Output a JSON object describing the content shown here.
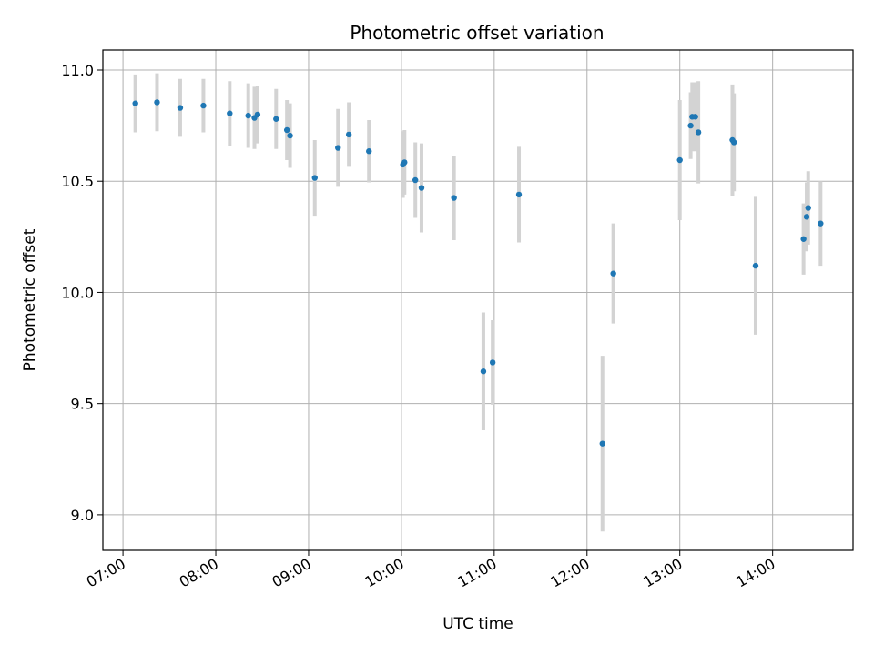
{
  "chart_data": {
    "type": "scatter",
    "title": "Photometric offset variation",
    "xlabel": "UTC time",
    "ylabel": "Photometric offset",
    "x_ticks": [
      "07:00",
      "08:00",
      "09:00",
      "10:00",
      "11:00",
      "12:00",
      "13:00",
      "14:00"
    ],
    "y_ticks": [
      "9.0",
      "9.5",
      "10.0",
      "10.5",
      "11.0"
    ],
    "ylim": [
      8.84,
      11.09
    ],
    "xlim": [
      "06:47",
      "14:52"
    ],
    "grid": true,
    "marker_color": "#1f77b4",
    "errorbar_color": "#d3d3d3",
    "points": [
      {
        "t": "07:08",
        "y": 10.85,
        "err": 0.13
      },
      {
        "t": "07:22",
        "y": 10.855,
        "err": 0.13
      },
      {
        "t": "07:37",
        "y": 10.83,
        "err": 0.13
      },
      {
        "t": "07:52",
        "y": 10.84,
        "err": 0.12
      },
      {
        "t": "08:09",
        "y": 10.805,
        "err": 0.145
      },
      {
        "t": "08:21",
        "y": 10.795,
        "err": 0.145
      },
      {
        "t": "08:25",
        "y": 10.785,
        "err": 0.14
      },
      {
        "t": "08:27",
        "y": 10.8,
        "err": 0.13
      },
      {
        "t": "08:39",
        "y": 10.78,
        "err": 0.135
      },
      {
        "t": "08:46",
        "y": 10.73,
        "err": 0.135
      },
      {
        "t": "08:48",
        "y": 10.705,
        "err": 0.145
      },
      {
        "t": "09:04",
        "y": 10.515,
        "err": 0.17
      },
      {
        "t": "09:19",
        "y": 10.65,
        "err": 0.175
      },
      {
        "t": "09:26",
        "y": 10.71,
        "err": 0.145
      },
      {
        "t": "09:39",
        "y": 10.635,
        "err": 0.14
      },
      {
        "t": "10:01",
        "y": 10.575,
        "err": 0.15
      },
      {
        "t": "10:02",
        "y": 10.585,
        "err": 0.145
      },
      {
        "t": "10:09",
        "y": 10.505,
        "err": 0.17
      },
      {
        "t": "10:13",
        "y": 10.47,
        "err": 0.2
      },
      {
        "t": "10:34",
        "y": 10.425,
        "err": 0.19
      },
      {
        "t": "10:53",
        "y": 9.645,
        "err": 0.265
      },
      {
        "t": "10:59",
        "y": 9.685,
        "err": 0.19
      },
      {
        "t": "11:16",
        "y": 10.44,
        "err": 0.215
      },
      {
        "t": "12:10",
        "y": 9.32,
        "err": 0.395
      },
      {
        "t": "12:17",
        "y": 10.085,
        "err": 0.225
      },
      {
        "t": "13:00",
        "y": 10.595,
        "err": 0.27
      },
      {
        "t": "13:07",
        "y": 10.75,
        "err": 0.15
      },
      {
        "t": "13:08",
        "y": 10.79,
        "err": 0.155
      },
      {
        "t": "13:10",
        "y": 10.79,
        "err": 0.155
      },
      {
        "t": "13:12",
        "y": 10.72,
        "err": 0.23
      },
      {
        "t": "13:34",
        "y": 10.685,
        "err": 0.25
      },
      {
        "t": "13:35",
        "y": 10.675,
        "err": 0.22
      },
      {
        "t": "13:49",
        "y": 10.12,
        "err": 0.31
      },
      {
        "t": "14:20",
        "y": 10.24,
        "err": 0.16
      },
      {
        "t": "14:22",
        "y": 10.34,
        "err": 0.155
      },
      {
        "t": "14:23",
        "y": 10.38,
        "err": 0.165
      },
      {
        "t": "14:31",
        "y": 10.31,
        "err": 0.19
      }
    ]
  }
}
